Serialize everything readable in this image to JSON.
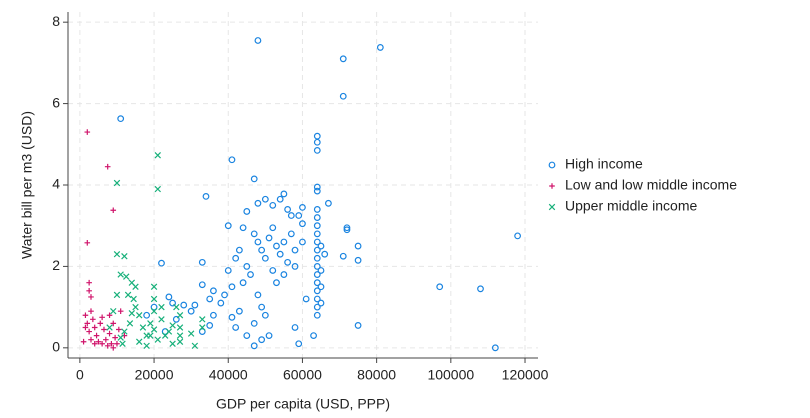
{
  "chart_data": {
    "type": "scatter",
    "x_label": "GDP per capita (USD, PPP)",
    "y_label": "Water bill per m3 (USD)",
    "xlim": [
      -3200,
      123500
    ],
    "ylim": [
      -0.25,
      8.25
    ],
    "xticks": [
      0,
      20000,
      40000,
      60000,
      80000,
      100000,
      120000
    ],
    "yticks": [
      0,
      2,
      4,
      6,
      8
    ],
    "grid": true,
    "legend": "right",
    "series": [
      {
        "name": "High income",
        "color": "#1a84e0",
        "marker": "circle",
        "x": [
          48000,
          81000,
          71000,
          71000,
          11000,
          64000,
          64000,
          64000,
          41000,
          47000,
          34000,
          55000,
          54000,
          64000,
          64000,
          50000,
          45000,
          48000,
          52000,
          56000,
          60000,
          67000,
          59000,
          57000,
          40000,
          44000,
          52000,
          60000,
          72000,
          72000,
          118000,
          75000,
          75000,
          71000,
          66000,
          33000,
          22000,
          47000,
          48000,
          49000,
          50000,
          51000,
          53000,
          54000,
          55000,
          56000,
          57000,
          58000,
          43000,
          42000,
          45000,
          46000,
          44000,
          40000,
          41000,
          39000,
          38000,
          36000,
          35000,
          33000,
          31000,
          30000,
          28000,
          26000,
          25000,
          24000,
          20000,
          23000,
          18000,
          52000,
          53000,
          55000,
          48000,
          49000,
          50000,
          47000,
          43000,
          41000,
          42000,
          45000,
          49000,
          51000,
          47000,
          35000,
          33000,
          36000,
          58000,
          63000,
          64000,
          64000,
          64000,
          64000,
          64000,
          64000,
          64000,
          64000,
          64000,
          64000,
          64000,
          64000,
          64000,
          64000,
          65000,
          65000,
          65000,
          65000,
          59000,
          61000,
          75000,
          97000,
          108000,
          112000,
          58000,
          60000
        ],
        "values": [
          7.55,
          7.38,
          7.1,
          6.18,
          5.63,
          5.2,
          5.05,
          4.85,
          4.62,
          4.15,
          3.72,
          3.78,
          3.65,
          3.95,
          3.85,
          3.65,
          3.35,
          3.55,
          3.5,
          3.4,
          3.45,
          3.55,
          3.25,
          3.25,
          3.0,
          2.95,
          2.95,
          3.05,
          2.95,
          2.9,
          2.75,
          2.5,
          2.15,
          2.25,
          2.3,
          2.1,
          2.08,
          2.8,
          2.6,
          2.4,
          2.2,
          2.7,
          2.5,
          2.3,
          2.6,
          2.1,
          2.8,
          2.4,
          2.4,
          2.2,
          2.0,
          1.8,
          1.6,
          1.9,
          1.5,
          1.3,
          1.1,
          1.4,
          1.2,
          1.55,
          1.05,
          0.9,
          1.05,
          0.7,
          1.1,
          1.25,
          1.0,
          0.4,
          0.8,
          1.9,
          1.6,
          1.8,
          1.3,
          1.0,
          0.8,
          0.6,
          0.9,
          0.75,
          0.5,
          0.3,
          0.2,
          0.3,
          0.05,
          0.55,
          0.4,
          0.8,
          0.5,
          0.3,
          0.8,
          1.0,
          1.2,
          1.4,
          1.6,
          1.8,
          2.0,
          2.2,
          2.4,
          2.6,
          2.8,
          3.0,
          3.2,
          3.4,
          1.1,
          1.5,
          1.9,
          2.5,
          0.1,
          1.2,
          0.55,
          1.5,
          1.45,
          0.0,
          2.0,
          2.6
        ]
      },
      {
        "name": "Low and low middle income",
        "color": "#d0146b",
        "marker": "plus",
        "x": [
          2000,
          7500,
          9000,
          2000,
          2500,
          2500,
          3000,
          1500,
          2000,
          2500,
          3000,
          3500,
          4000,
          4500,
          5000,
          5500,
          6000,
          6500,
          7000,
          7500,
          8000,
          8500,
          9000,
          9500,
          10000,
          10500,
          11000,
          1000,
          1500,
          3000,
          6000,
          8000,
          4000,
          9000,
          12000
        ],
        "values": [
          5.3,
          4.45,
          3.38,
          2.58,
          1.6,
          1.4,
          1.25,
          0.8,
          0.6,
          0.4,
          0.2,
          0.7,
          0.5,
          0.3,
          0.15,
          0.6,
          0.1,
          0.45,
          0.2,
          0.05,
          0.35,
          0.1,
          0.6,
          0.25,
          0.1,
          0.45,
          0.9,
          0.15,
          0.5,
          0.9,
          0.75,
          0.8,
          0.1,
          0.0,
          0.3
        ]
      },
      {
        "name": "Upper middle income",
        "color": "#17b07a",
        "marker": "cross",
        "x": [
          21000,
          10000,
          21000,
          10000,
          12000,
          11000,
          12500,
          14000,
          15000,
          14500,
          15000,
          14000,
          13000,
          13500,
          12000,
          11000,
          16000,
          17000,
          18000,
          19000,
          20000,
          20000,
          20000,
          20000,
          21000,
          22000,
          23000,
          24000,
          25000,
          27000,
          27000,
          27000,
          27000,
          26000,
          30000,
          33000,
          33000,
          10000,
          9000,
          8000,
          11500,
          16000,
          18000,
          25000,
          22000,
          19000,
          31000
        ],
        "values": [
          4.73,
          4.05,
          3.9,
          2.3,
          2.25,
          1.8,
          1.75,
          1.6,
          1.5,
          1.2,
          1.0,
          0.85,
          1.3,
          0.6,
          0.4,
          0.25,
          0.8,
          0.5,
          0.3,
          0.6,
          1.5,
          1.2,
          0.9,
          0.45,
          0.2,
          0.7,
          0.3,
          0.4,
          0.55,
          0.8,
          0.5,
          0.3,
          0.15,
          1.0,
          0.35,
          0.5,
          0.7,
          1.3,
          0.9,
          0.5,
          0.1,
          0.15,
          0.05,
          0.1,
          1.0,
          0.3,
          0.05
        ]
      }
    ]
  }
}
